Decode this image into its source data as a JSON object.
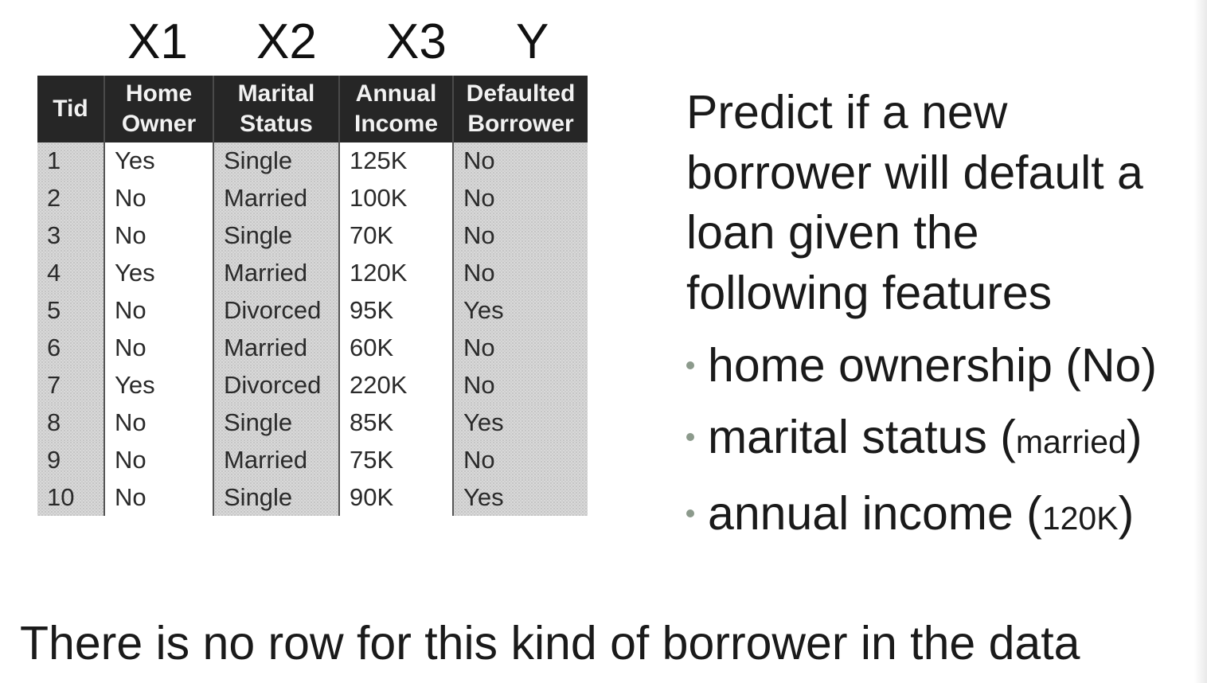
{
  "variable_labels": [
    "X1",
    "X2",
    "X3",
    "Y"
  ],
  "table": {
    "headers": [
      [
        "Tid"
      ],
      [
        "Home",
        "Owner"
      ],
      [
        "Marital",
        "Status"
      ],
      [
        "Annual",
        "Income"
      ],
      [
        "Defaulted",
        "Borrower"
      ]
    ],
    "rows": [
      [
        "1",
        "Yes",
        "Single",
        "125K",
        "No"
      ],
      [
        "2",
        "No",
        "Married",
        "100K",
        "No"
      ],
      [
        "3",
        "No",
        "Single",
        "70K",
        "No"
      ],
      [
        "4",
        "Yes",
        "Married",
        "120K",
        "No"
      ],
      [
        "5",
        "No",
        "Divorced",
        "95K",
        "Yes"
      ],
      [
        "6",
        "No",
        "Married",
        "60K",
        "No"
      ],
      [
        "7",
        "Yes",
        "Divorced",
        "220K",
        "No"
      ],
      [
        "8",
        "No",
        "Single",
        "85K",
        "Yes"
      ],
      [
        "9",
        "No",
        "Married",
        "75K",
        "No"
      ],
      [
        "10",
        "No",
        "Single",
        "90K",
        "Yes"
      ]
    ]
  },
  "question": {
    "lines": [
      "Predict if a new",
      "borrower will default a",
      "loan given the",
      "following features"
    ]
  },
  "features": [
    {
      "label": "home ownership (",
      "value": "No",
      "close": ")"
    },
    {
      "label": "marital status (",
      "value": "married",
      "close": ")"
    },
    {
      "label": "annual income (",
      "value": "120K",
      "close": ")"
    }
  ],
  "footer": "There is no row for this kind of borrower in the data",
  "colors": {
    "header_bg": "#262626",
    "shaded_col": "#d9d9d9",
    "bullet": "#8c9a8c"
  }
}
